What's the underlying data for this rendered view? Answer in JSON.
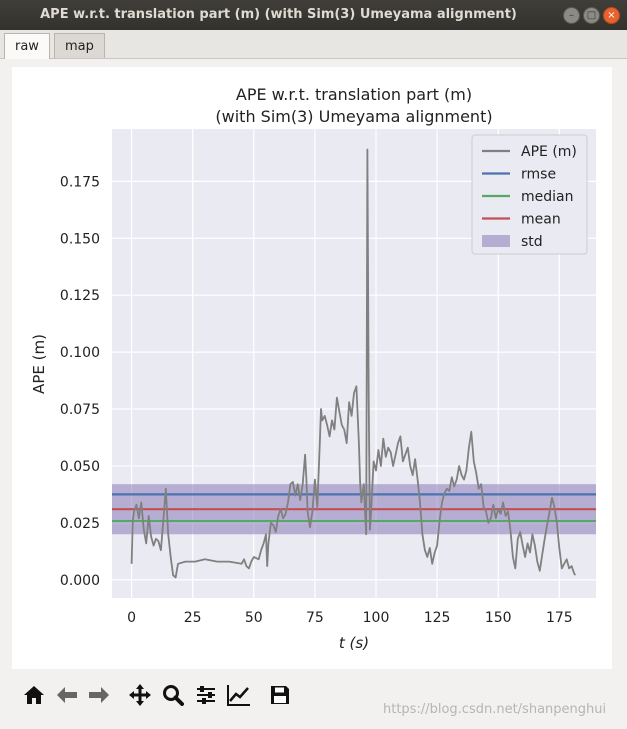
{
  "window": {
    "title": "APE w.r.t. translation part (m) (with Sim(3) Umeyama alignment)",
    "buttons": [
      "minimize-icon",
      "maximize-icon",
      "close-icon"
    ]
  },
  "tabs": [
    {
      "label": "raw",
      "active": true
    },
    {
      "label": "map",
      "active": false
    }
  ],
  "toolbar": {
    "icons": [
      "home-icon",
      "back-arrow-icon",
      "forward-arrow-icon",
      "pan-move-icon",
      "zoom-magnifier-icon",
      "subplots-configure-icon",
      "edit-curves-icon",
      "save-floppy-icon"
    ]
  },
  "watermark": "https://blog.csdn.net/shanpenghui",
  "colors": {
    "plot_bg": "#eaeaf2",
    "ape": "#808080",
    "rmse": "#4c72b0",
    "median": "#55a868",
    "mean": "#c44e52",
    "std": "#8172b2"
  },
  "chart_data": {
    "type": "line",
    "title_line1": "APE w.r.t. translation part (m)",
    "title_line2": "(with Sim(3) Umeyama alignment)",
    "xlabel": "t (s)",
    "ylabel": "APE (m)",
    "xlim": [
      -8,
      190
    ],
    "ylim": [
      -0.008,
      0.198
    ],
    "xticks": [
      0,
      25,
      50,
      75,
      100,
      125,
      150,
      175
    ],
    "yticks": [
      0.0,
      0.025,
      0.05,
      0.075,
      0.1,
      0.125,
      0.15,
      0.175
    ],
    "ytick_labels": [
      "0.000",
      "0.025",
      "0.050",
      "0.075",
      "0.100",
      "0.125",
      "0.150",
      "0.175"
    ],
    "grid": true,
    "legend_position": "top-right",
    "legend": [
      {
        "label": "APE (m)",
        "kind": "line",
        "color": "#808080"
      },
      {
        "label": "rmse",
        "kind": "line",
        "color": "#4c72b0"
      },
      {
        "label": "median",
        "kind": "line",
        "color": "#55a868"
      },
      {
        "label": "mean",
        "kind": "line",
        "color": "#c44e52"
      },
      {
        "label": "std",
        "kind": "patch",
        "color": "#8172b2"
      }
    ],
    "stats": {
      "rmse": 0.0375,
      "median": 0.0258,
      "mean": 0.031,
      "std_lower": 0.02,
      "std_upper": 0.042
    },
    "series": [
      {
        "name": "APE (m)",
        "points": [
          [
            0,
            0.007
          ],
          [
            0.5,
            0.026
          ],
          [
            1,
            0.03
          ],
          [
            2,
            0.033
          ],
          [
            3,
            0.027
          ],
          [
            4,
            0.034
          ],
          [
            5,
            0.022
          ],
          [
            6,
            0.016
          ],
          [
            7,
            0.028
          ],
          [
            8,
            0.019
          ],
          [
            9,
            0.015
          ],
          [
            10,
            0.018
          ],
          [
            11,
            0.017
          ],
          [
            12,
            0.013
          ],
          [
            13,
            0.026
          ],
          [
            14,
            0.04
          ],
          [
            14.5,
            0.03
          ],
          [
            15,
            0.02
          ],
          [
            16,
            0.01
          ],
          [
            17,
            0.002
          ],
          [
            18,
            0.001
          ],
          [
            19,
            0.007
          ],
          [
            22,
            0.008
          ],
          [
            26,
            0.008
          ],
          [
            30,
            0.009
          ],
          [
            35,
            0.008
          ],
          [
            40,
            0.008
          ],
          [
            45,
            0.007
          ],
          [
            46,
            0.009
          ],
          [
            47,
            0.006
          ],
          [
            48,
            0.005
          ],
          [
            49,
            0.008
          ],
          [
            50,
            0.01
          ],
          [
            52,
            0.009
          ],
          [
            53,
            0.013
          ],
          [
            54,
            0.016
          ],
          [
            55,
            0.02
          ],
          [
            55.5,
            0.006
          ],
          [
            56,
            0.016
          ],
          [
            57,
            0.025
          ],
          [
            58,
            0.024
          ],
          [
            59,
            0.021
          ],
          [
            60,
            0.028
          ],
          [
            61,
            0.031
          ],
          [
            62,
            0.027
          ],
          [
            63,
            0.029
          ],
          [
            64,
            0.034
          ],
          [
            65,
            0.042
          ],
          [
            66,
            0.043
          ],
          [
            67,
            0.037
          ],
          [
            68,
            0.042
          ],
          [
            69,
            0.035
          ],
          [
            70,
            0.042
          ],
          [
            71,
            0.055
          ],
          [
            71.5,
            0.045
          ],
          [
            72,
            0.03
          ],
          [
            73,
            0.023
          ],
          [
            74,
            0.03
          ],
          [
            75,
            0.044
          ],
          [
            76,
            0.032
          ],
          [
            77,
            0.06
          ],
          [
            77.5,
            0.075
          ],
          [
            78,
            0.07
          ],
          [
            79,
            0.072
          ],
          [
            80,
            0.068
          ],
          [
            81,
            0.063
          ],
          [
            82,
            0.07
          ],
          [
            83,
            0.066
          ],
          [
            84,
            0.08
          ],
          [
            85,
            0.074
          ],
          [
            86,
            0.068
          ],
          [
            87,
            0.066
          ],
          [
            88,
            0.06
          ],
          [
            89,
            0.078
          ],
          [
            90,
            0.072
          ],
          [
            91,
            0.082
          ],
          [
            92,
            0.085
          ],
          [
            93,
            0.06
          ],
          [
            93.5,
            0.043
          ],
          [
            94,
            0.034
          ],
          [
            95,
            0.042
          ],
          [
            95.5,
            0.03
          ],
          [
            96,
            0.02
          ],
          [
            96.5,
            0.189
          ],
          [
            97,
            0.08
          ],
          [
            97.5,
            0.022
          ],
          [
            98,
            0.03
          ],
          [
            99,
            0.052
          ],
          [
            100,
            0.048
          ],
          [
            101,
            0.057
          ],
          [
            102,
            0.05
          ],
          [
            103,
            0.062
          ],
          [
            104,
            0.054
          ],
          [
            105,
            0.058
          ],
          [
            106,
            0.056
          ],
          [
            107,
            0.05
          ],
          [
            108,
            0.055
          ],
          [
            109,
            0.06
          ],
          [
            110,
            0.063
          ],
          [
            111,
            0.052
          ],
          [
            112,
            0.055
          ],
          [
            113,
            0.058
          ],
          [
            114,
            0.05
          ],
          [
            115,
            0.046
          ],
          [
            116,
            0.053
          ],
          [
            117,
            0.044
          ],
          [
            118,
            0.034
          ],
          [
            119,
            0.02
          ],
          [
            120,
            0.013
          ],
          [
            121,
            0.01
          ],
          [
            122,
            0.014
          ],
          [
            123,
            0.007
          ],
          [
            124,
            0.012
          ],
          [
            125,
            0.015
          ],
          [
            126,
            0.026
          ],
          [
            127,
            0.034
          ],
          [
            128,
            0.038
          ],
          [
            129,
            0.04
          ],
          [
            130,
            0.039
          ],
          [
            131,
            0.045
          ],
          [
            132,
            0.041
          ],
          [
            133,
            0.044
          ],
          [
            134,
            0.05
          ],
          [
            135,
            0.046
          ],
          [
            136,
            0.044
          ],
          [
            137,
            0.048
          ],
          [
            138,
            0.058
          ],
          [
            139,
            0.065
          ],
          [
            140,
            0.052
          ],
          [
            141,
            0.047
          ],
          [
            142,
            0.04
          ],
          [
            143,
            0.042
          ],
          [
            144,
            0.032
          ],
          [
            145,
            0.03
          ],
          [
            146,
            0.025
          ],
          [
            147,
            0.027
          ],
          [
            148,
            0.033
          ],
          [
            149,
            0.027
          ],
          [
            150,
            0.031
          ],
          [
            151,
            0.029
          ],
          [
            152,
            0.034
          ],
          [
            153,
            0.028
          ],
          [
            154,
            0.03
          ],
          [
            155,
            0.022
          ],
          [
            156,
            0.01
          ],
          [
            157,
            0.005
          ],
          [
            158,
            0.018
          ],
          [
            159,
            0.021
          ],
          [
            160,
            0.015
          ],
          [
            161,
            0.01
          ],
          [
            162,
            0.016
          ],
          [
            163,
            0.012
          ],
          [
            164,
            0.02
          ],
          [
            165,
            0.015
          ],
          [
            166,
            0.008
          ],
          [
            167,
            0.004
          ],
          [
            168,
            0.011
          ],
          [
            169,
            0.018
          ],
          [
            170,
            0.024
          ],
          [
            171,
            0.03
          ],
          [
            172,
            0.036
          ],
          [
            173,
            0.032
          ],
          [
            174,
            0.025
          ],
          [
            175,
            0.014
          ],
          [
            176,
            0.005
          ],
          [
            177,
            0.007
          ],
          [
            178,
            0.009
          ],
          [
            179,
            0.005
          ],
          [
            180,
            0.006
          ],
          [
            181,
            0.003
          ],
          [
            181.5,
            0.002
          ]
        ]
      }
    ]
  }
}
